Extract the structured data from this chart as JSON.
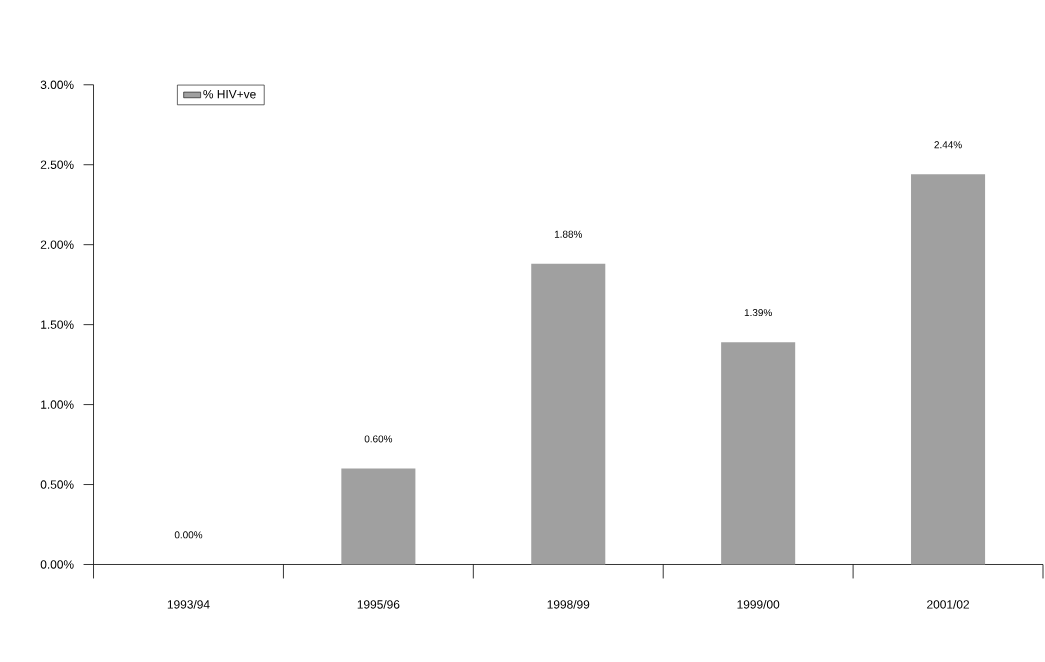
{
  "chart_data": {
    "type": "bar",
    "categories": [
      "1993/94",
      "1995/96",
      "1998/99",
      "1999/00",
      "2001/02"
    ],
    "series": [
      {
        "name": "% HIV+ve",
        "color": "#a0a0a0",
        "values": [
          0,
          0.6,
          1.88,
          1.39,
          2.44
        ],
        "value_labels": [
          "0.00%",
          "0.60%",
          "1.88%",
          "1.39%",
          "2.44%"
        ]
      }
    ],
    "ylim": [
      0,
      3
    ],
    "yticks": [
      {
        "value": 0,
        "label": "0.00%"
      },
      {
        "value": 0.5,
        "label": "0.50%"
      },
      {
        "value": 1,
        "label": "1.00%"
      },
      {
        "value": 1.5,
        "label": "1.50%"
      },
      {
        "value": 2,
        "label": "2.00%"
      },
      {
        "value": 2.5,
        "label": "2.50%"
      },
      {
        "value": 3,
        "label": "3.00%"
      }
    ],
    "grid": false,
    "legend": "top left"
  }
}
